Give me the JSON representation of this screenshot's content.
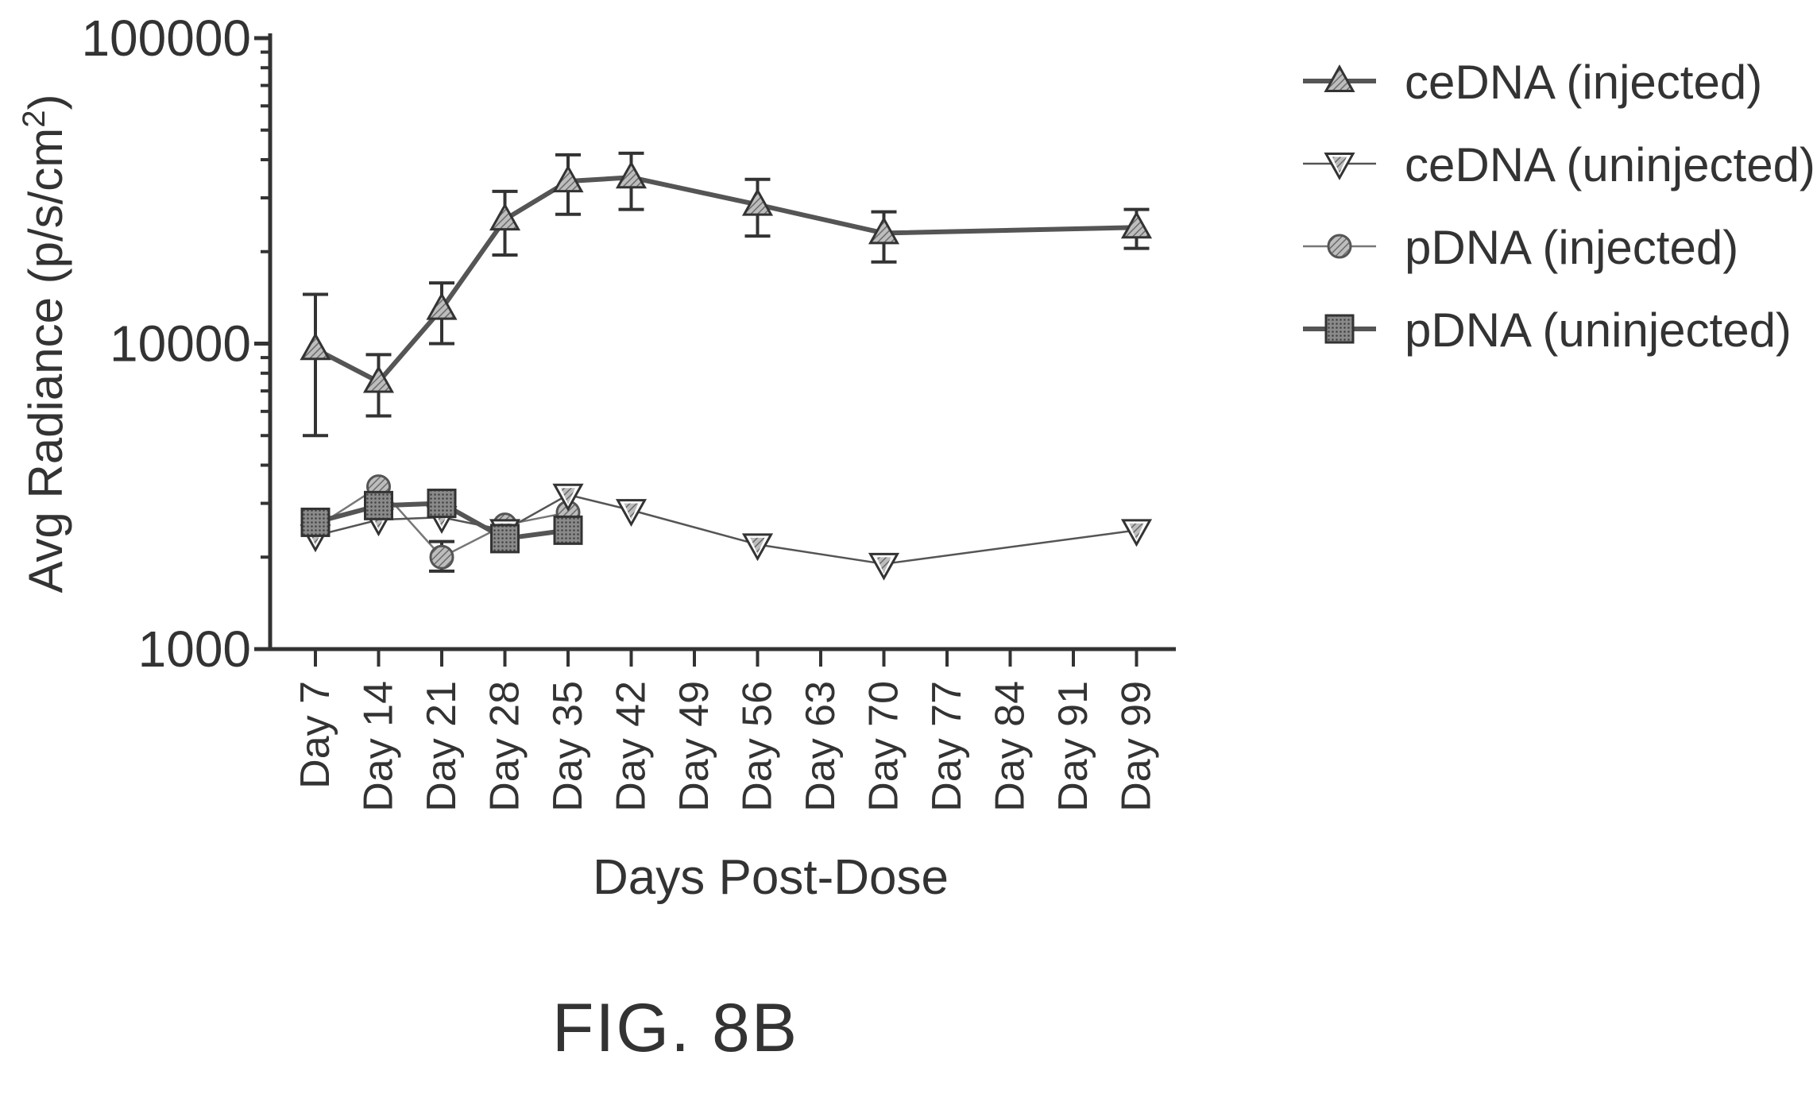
{
  "figure_label": "FIG. 8B",
  "chart_data": {
    "type": "line",
    "title": "",
    "xlabel": "Days Post-Dose",
    "ylabel": "Avg Radiance (p/s/cm",
    "ylabel_superscript": "2",
    "ylabel_close": ")",
    "y_scale": "log",
    "ylim": [
      1000,
      100000
    ],
    "y_ticks": [
      "1000",
      "10000",
      "100000"
    ],
    "categories": [
      "Day 7",
      "Day 14",
      "Day 21",
      "Day 28",
      "Day 35",
      "Day 42",
      "Day 49",
      "Day 56",
      "Day 63",
      "Day 70",
      "Day 77",
      "Day 84",
      "Day 91",
      "Day 99"
    ],
    "legend_position": "top-right",
    "grid": false,
    "series": [
      {
        "name": "ceDNA (injected)",
        "marker": "triangle-up",
        "line_weight": "heavy",
        "color": "#555555",
        "points": [
          {
            "x": "Day 7",
            "y": 9600,
            "lo": 5000,
            "hi": 14500
          },
          {
            "x": "Day 14",
            "y": 7500,
            "lo": 5800,
            "hi": 9200
          },
          {
            "x": "Day 21",
            "y": 13000,
            "lo": 10000,
            "hi": 15800
          },
          {
            "x": "Day 28",
            "y": 25500,
            "lo": 19500,
            "hi": 31500
          },
          {
            "x": "Day 35",
            "y": 34000,
            "lo": 26500,
            "hi": 41500
          },
          {
            "x": "Day 42",
            "y": 35000,
            "lo": 27500,
            "hi": 42000
          },
          {
            "x": "Day 56",
            "y": 28500,
            "lo": 22500,
            "hi": 34500
          },
          {
            "x": "Day 70",
            "y": 23000,
            "lo": 18500,
            "hi": 27000
          },
          {
            "x": "Day 99",
            "y": 24000,
            "lo": 20500,
            "hi": 27500
          }
        ]
      },
      {
        "name": "ceDNA (uninjected)",
        "marker": "triangle-down",
        "line_weight": "thin",
        "color": "#555555",
        "points": [
          {
            "x": "Day 7",
            "y": 2350
          },
          {
            "x": "Day 14",
            "y": 2650
          },
          {
            "x": "Day 21",
            "y": 2700
          },
          {
            "x": "Day 28",
            "y": 2450
          },
          {
            "x": "Day 35",
            "y": 3200
          },
          {
            "x": "Day 42",
            "y": 2850
          },
          {
            "x": "Day 56",
            "y": 2200
          },
          {
            "x": "Day 70",
            "y": 1900
          },
          {
            "x": "Day 99",
            "y": 2450
          }
        ]
      },
      {
        "name": "pDNA (injected)",
        "marker": "circle",
        "line_weight": "thin",
        "color": "#777777",
        "points": [
          {
            "x": "Day 7",
            "y": 2500
          },
          {
            "x": "Day 14",
            "y": 3400
          },
          {
            "x": "Day 21",
            "y": 2000,
            "lo": 1800,
            "hi": 2250
          },
          {
            "x": "Day 28",
            "y": 2550
          },
          {
            "x": "Day 35",
            "y": 2800
          }
        ]
      },
      {
        "name": "pDNA (uninjected)",
        "marker": "square",
        "line_weight": "heavy",
        "color": "#555555",
        "points": [
          {
            "x": "Day 7",
            "y": 2600
          },
          {
            "x": "Day 14",
            "y": 2950
          },
          {
            "x": "Day 21",
            "y": 3000
          },
          {
            "x": "Day 28",
            "y": 2300
          },
          {
            "x": "Day 35",
            "y": 2450
          }
        ]
      }
    ]
  }
}
